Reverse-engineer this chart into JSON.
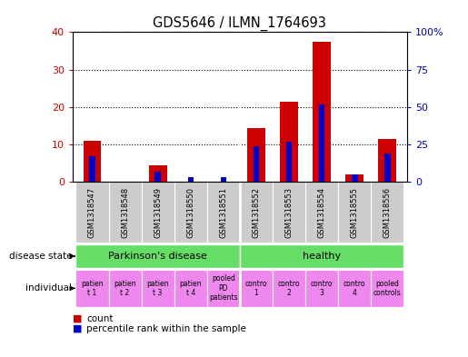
{
  "title": "GDS5646 / ILMN_1764693",
  "samples": [
    "GSM1318547",
    "GSM1318548",
    "GSM1318549",
    "GSM1318550",
    "GSM1318551",
    "GSM1318552",
    "GSM1318553",
    "GSM1318554",
    "GSM1318555",
    "GSM1318556"
  ],
  "red_values": [
    11,
    0,
    4.5,
    0,
    0,
    14.5,
    21.5,
    37.5,
    2,
    11.5
  ],
  "blue_values": [
    17,
    0,
    7,
    3,
    3,
    24,
    27,
    52,
    5,
    19
  ],
  "ylim_left": [
    0,
    40
  ],
  "ylim_right": [
    0,
    100
  ],
  "yticks_left": [
    0,
    10,
    20,
    30,
    40
  ],
  "yticks_right": [
    0,
    25,
    50,
    75,
    100
  ],
  "red_color": "#cc0000",
  "blue_color": "#0000cc",
  "tick_color_left": "#cc0000",
  "tick_color_right": "#0000bb",
  "grid_color": "#000000",
  "sample_bg": "#cccccc",
  "pd_color": "#66dd66",
  "healthy_color": "#66dd66",
  "ind_color": "#ee88ee",
  "ind_pooled_color": "#ee88ee",
  "disease_state_label": "disease state",
  "individual_label": "individual",
  "legend_red": "count",
  "legend_blue": "percentile rank within the sample",
  "ind_texts": [
    "patien\nt 1",
    "patien\nt 2",
    "patien\nt 3",
    "patien\nt 4",
    "pooled\nPD\npatients",
    "contro\n1",
    "contro\n2",
    "contro\n3",
    "contro\n4",
    "pooled\ncontrols"
  ],
  "red_bar_width": 0.55,
  "blue_bar_width": 0.18
}
